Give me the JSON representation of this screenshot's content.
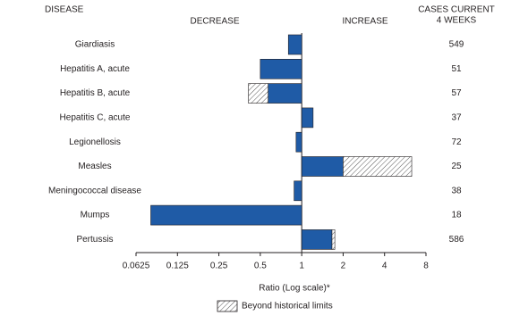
{
  "chart_data": {
    "type": "bar",
    "orientation": "horizontal",
    "log_scale": true,
    "headers": {
      "disease": "DISEASE",
      "decrease": "DECREASE",
      "increase": "INCREASE",
      "cases": [
        "CASES CURRENT",
        "4 WEEKS"
      ]
    },
    "categories": [
      "Giardiasis",
      "Hepatitis A, acute",
      "Hepatitis B, acute",
      "Hepatitis C, acute",
      "Legionellosis",
      "Measles",
      "Meningococcal disease",
      "Mumps",
      "Pertussis"
    ],
    "values": [
      0.8,
      0.5,
      0.41,
      1.21,
      0.91,
      6.3,
      0.88,
      0.08,
      1.74
    ],
    "historical_limits": [
      null,
      null,
      0.57,
      null,
      null,
      2.0,
      null,
      null,
      1.66
    ],
    "cases": [
      549,
      51,
      57,
      37,
      72,
      25,
      38,
      18,
      586
    ],
    "color": "#1f5ba6",
    "xlim": [
      0.0625,
      8
    ],
    "xticks": [
      0.0625,
      0.125,
      0.25,
      0.5,
      1,
      2,
      4,
      8
    ],
    "xlabel": "Ratio (Log scale)*",
    "legend": "Beyond historical limits"
  }
}
